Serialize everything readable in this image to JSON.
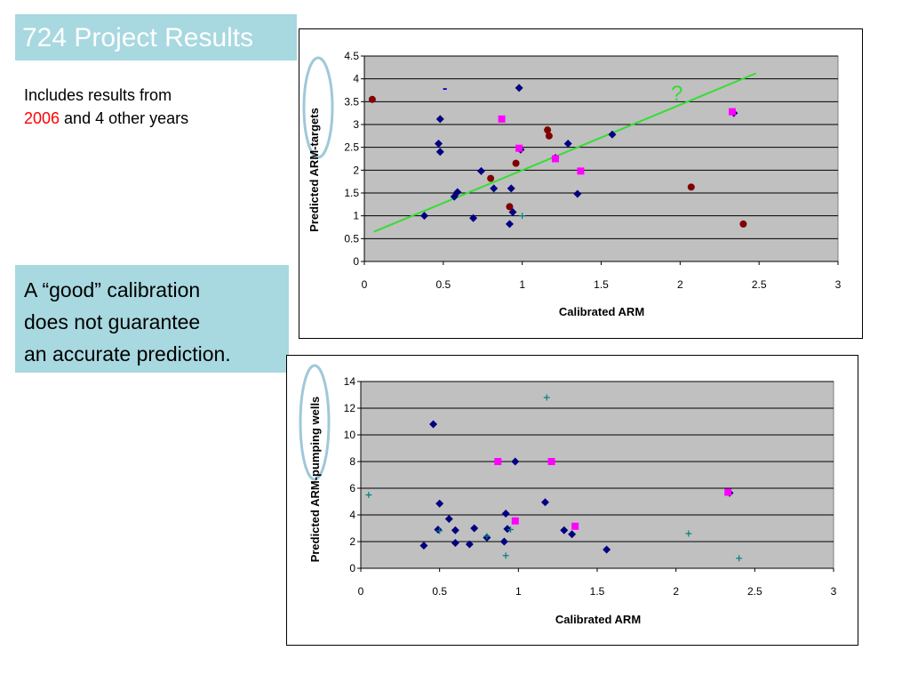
{
  "slide": {
    "title": "724 Project Results",
    "intro_line1": "Includes results from",
    "intro_year": "2006",
    "intro_rest": " and 4 other years",
    "callout_line1": "A “good” calibration",
    "callout_line2": "does not guarantee",
    "callout_line3": "an accurate prediction.",
    "question_mark": "?",
    "dash_mark": "-"
  },
  "colors": {
    "title_bg": "#a8d8e0",
    "plot_bg": "#c0c0c0",
    "blue_diamond": "#000080",
    "dark_red_circle": "#800000",
    "magenta_square": "#ff00ff",
    "teal_cross": "#008080",
    "trend_line": "#33dd33",
    "ellipse": "#a0c8d8"
  },
  "chart_data": [
    {
      "type": "scatter",
      "xlabel": "Calibrated ARM",
      "ylabel": "Predicted ARM-targets",
      "xlim": [
        0,
        3
      ],
      "ylim": [
        0,
        4.5
      ],
      "x_ticks": [
        "0",
        "0.5",
        "1",
        "1.5",
        "2",
        "2.5",
        "3"
      ],
      "y_ticks": [
        "0",
        "0.5",
        "1",
        "1.5",
        "2",
        "2.5",
        "3",
        "3.5",
        "4",
        "4.5"
      ],
      "grid": "horizontal",
      "trend_line": [
        [
          0.06,
          0.65
        ],
        [
          2.48,
          4.12
        ]
      ],
      "series": [
        {
          "marker": "diamond",
          "color": "#000080",
          "points": [
            [
              0.98,
              3.8
            ],
            [
              0.48,
              3.12
            ],
            [
              0.47,
              2.58
            ],
            [
              0.48,
              2.4
            ],
            [
              0.74,
              1.98
            ],
            [
              0.82,
              1.6
            ],
            [
              0.59,
              1.52
            ],
            [
              0.57,
              1.42
            ],
            [
              0.38,
              1.0
            ],
            [
              0.69,
              0.95
            ],
            [
              0.93,
              1.6
            ],
            [
              0.94,
              1.08
            ],
            [
              0.92,
              0.82
            ],
            [
              1.29,
              2.58
            ],
            [
              1.57,
              2.78
            ],
            [
              1.35,
              1.48
            ],
            [
              2.34,
              3.25
            ],
            [
              1.21,
              2.27
            ],
            [
              0.99,
              2.45
            ]
          ]
        },
        {
          "marker": "circle",
          "color": "#800000",
          "points": [
            [
              0.05,
              3.55
            ],
            [
              1.16,
              2.88
            ],
            [
              1.17,
              2.75
            ],
            [
              0.96,
              2.15
            ],
            [
              0.8,
              1.82
            ],
            [
              0.92,
              1.2
            ],
            [
              2.07,
              1.63
            ],
            [
              2.4,
              0.82
            ]
          ]
        },
        {
          "marker": "square",
          "color": "#ff00ff",
          "points": [
            [
              0.87,
              3.12
            ],
            [
              0.98,
              2.48
            ],
            [
              1.21,
              2.25
            ],
            [
              1.37,
              1.98
            ],
            [
              2.33,
              3.28
            ]
          ]
        },
        {
          "marker": "cross",
          "color": "#008080",
          "points": [
            [
              1.0,
              1.0
            ]
          ]
        }
      ]
    },
    {
      "type": "scatter",
      "xlabel": "Calibrated ARM",
      "ylabel": "Predicted ARM-pumping wells",
      "xlim": [
        0,
        3
      ],
      "ylim": [
        0,
        14
      ],
      "x_ticks": [
        "0",
        "0.5",
        "1",
        "1.5",
        "2",
        "2.5",
        "3"
      ],
      "y_ticks": [
        "0",
        "2",
        "4",
        "6",
        "8",
        "10",
        "12",
        "14"
      ],
      "grid": "horizontal",
      "series": [
        {
          "marker": "diamond",
          "color": "#000080",
          "points": [
            [
              0.46,
              10.8
            ],
            [
              0.98,
              8.0
            ],
            [
              0.5,
              4.85
            ],
            [
              0.56,
              3.7
            ],
            [
              0.49,
              2.9
            ],
            [
              0.6,
              2.85
            ],
            [
              0.6,
              1.9
            ],
            [
              0.4,
              1.7
            ],
            [
              0.69,
              1.8
            ],
            [
              0.72,
              3.0
            ],
            [
              0.8,
              2.3
            ],
            [
              0.92,
              4.1
            ],
            [
              0.93,
              2.95
            ],
            [
              0.91,
              2.0
            ],
            [
              1.17,
              4.95
            ],
            [
              1.29,
              2.85
            ],
            [
              1.34,
              2.55
            ],
            [
              1.56,
              1.4
            ],
            [
              2.34,
              5.65
            ]
          ]
        },
        {
          "marker": "square",
          "color": "#ff00ff",
          "points": [
            [
              0.87,
              8.0
            ],
            [
              1.21,
              8.0
            ],
            [
              2.33,
              5.7
            ],
            [
              0.98,
              3.55
            ],
            [
              1.36,
              3.15
            ]
          ]
        },
        {
          "marker": "cross",
          "color": "#008080",
          "points": [
            [
              0.05,
              5.5
            ],
            [
              1.18,
              12.8
            ],
            [
              0.5,
              2.8
            ],
            [
              0.8,
              2.4
            ],
            [
              0.95,
              2.9
            ],
            [
              0.92,
              0.95
            ],
            [
              2.08,
              2.6
            ],
            [
              2.4,
              0.75
            ]
          ]
        }
      ]
    }
  ]
}
